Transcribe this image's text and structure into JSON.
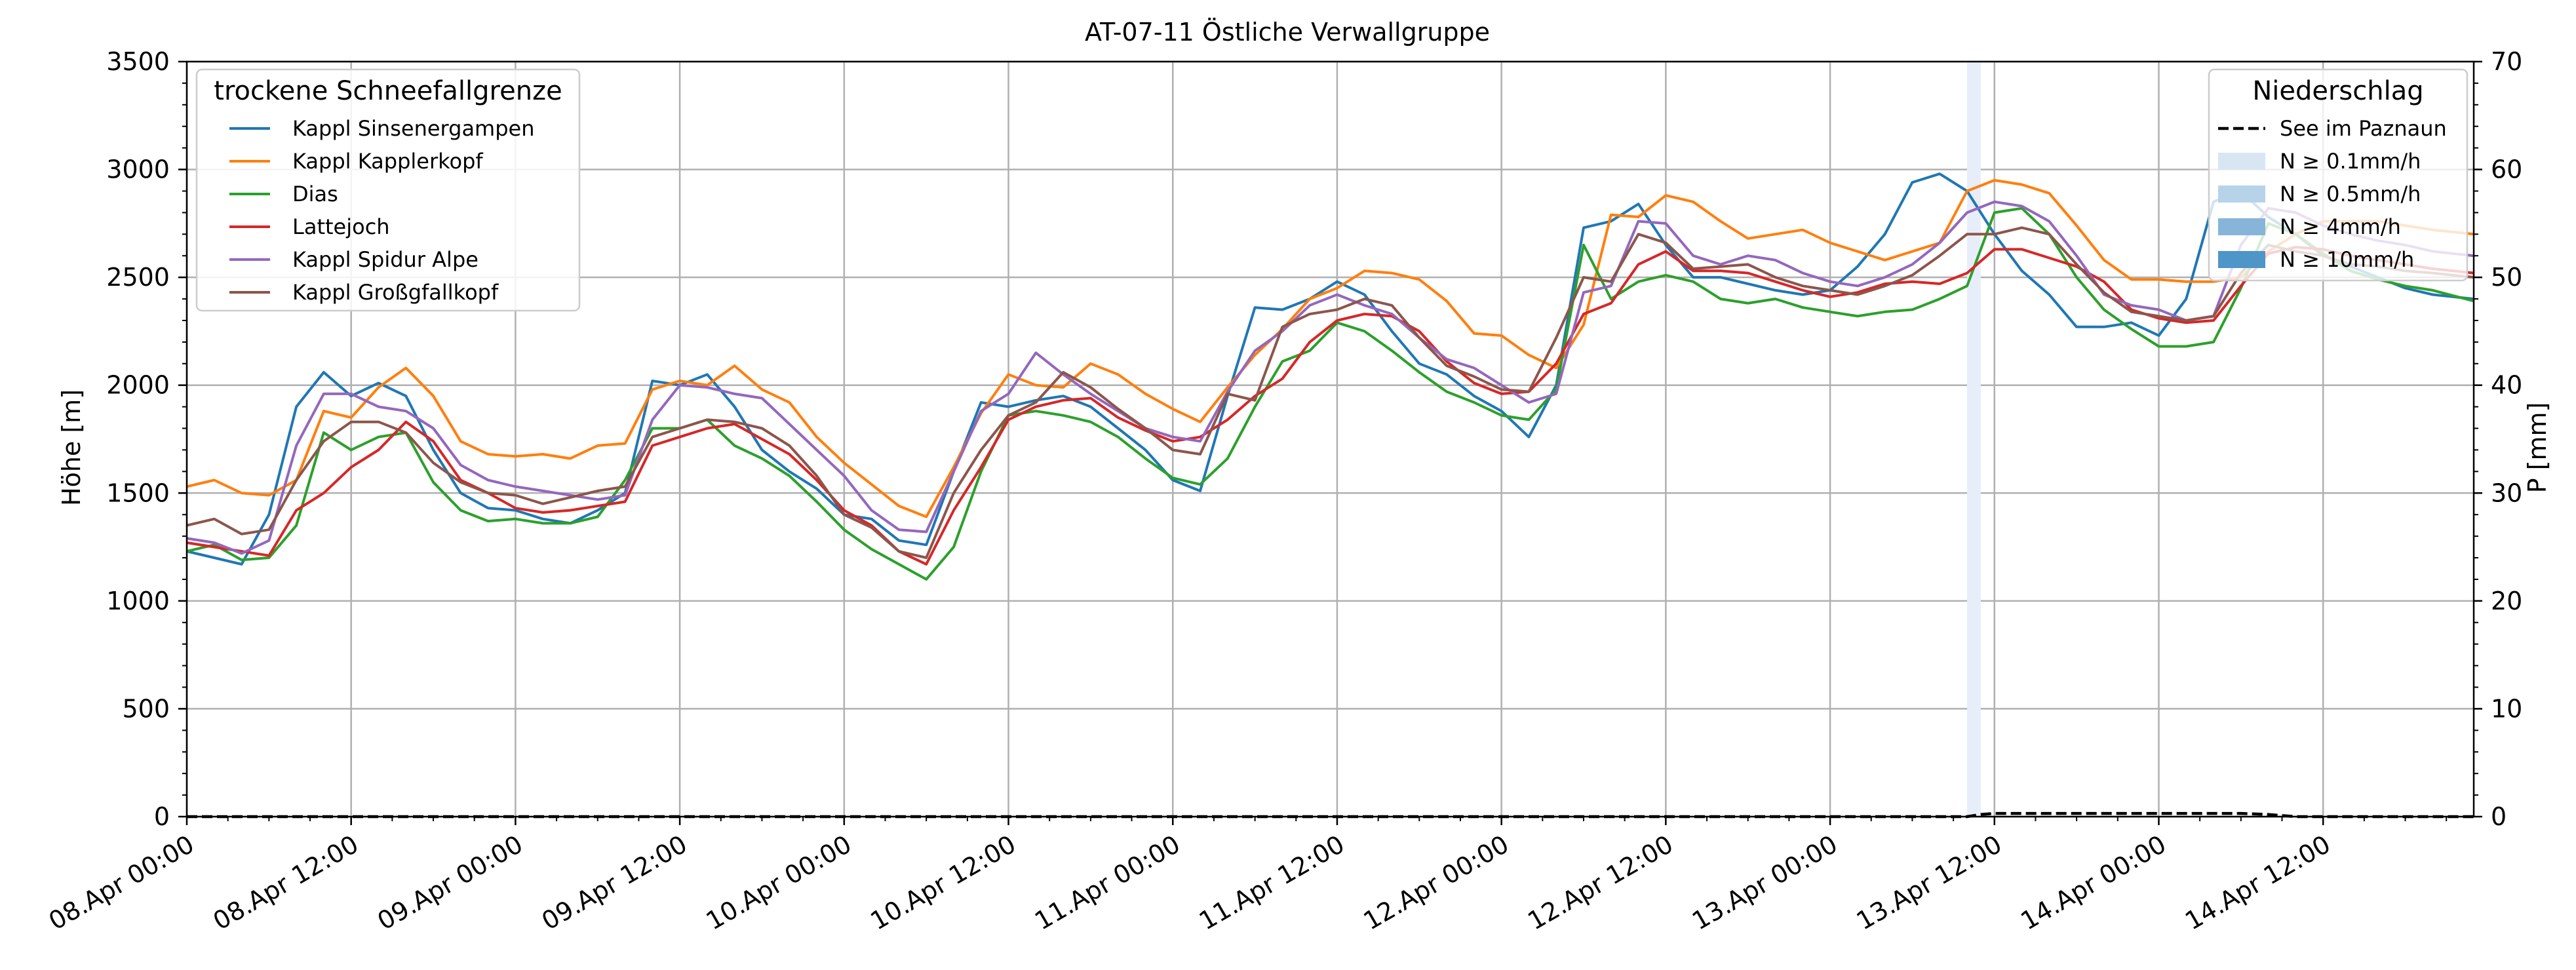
{
  "chart_data": {
    "type": "line",
    "title": "AT-07-11 Östliche Verwallgruppe",
    "xlabel": "",
    "ylabel": "Höhe [m]",
    "y2label": "P [mm]",
    "x_unit": "hours since 08.Apr 00:00",
    "xlim": [
      0,
      167
    ],
    "ylim": [
      0,
      3500
    ],
    "y2lim": [
      0,
      70
    ],
    "grid": true,
    "x_ticks": [
      {
        "x": 0,
        "label": "08.Apr 00:00"
      },
      {
        "x": 12,
        "label": "08.Apr 12:00"
      },
      {
        "x": 24,
        "label": "09.Apr 00:00"
      },
      {
        "x": 36,
        "label": "09.Apr 12:00"
      },
      {
        "x": 48,
        "label": "10.Apr 00:00"
      },
      {
        "x": 60,
        "label": "10.Apr 12:00"
      },
      {
        "x": 72,
        "label": "11.Apr 00:00"
      },
      {
        "x": 84,
        "label": "11.Apr 12:00"
      },
      {
        "x": 96,
        "label": "12.Apr 00:00"
      },
      {
        "x": 108,
        "label": "12.Apr 12:00"
      },
      {
        "x": 120,
        "label": "13.Apr 00:00"
      },
      {
        "x": 132,
        "label": "13.Apr 12:00"
      },
      {
        "x": 144,
        "label": "14.Apr 00:00"
      },
      {
        "x": 156,
        "label": "14.Apr 12:00"
      }
    ],
    "y_ticks": [
      0,
      500,
      1000,
      1500,
      2000,
      2500,
      3000,
      3500
    ],
    "y2_ticks": [
      0,
      10,
      20,
      30,
      40,
      50,
      60,
      70
    ],
    "legend_snow": {
      "title": "trockene Schneefallgrenze",
      "placement": "top-left"
    },
    "legend_precip": {
      "title": "Niederschlag",
      "placement": "top-right",
      "entries": [
        {
          "label": "See im Paznaun",
          "color": "#000000",
          "style": "dashed"
        },
        {
          "label": "N ≥ 0.1mm/h",
          "color": "#d8e6f3"
        },
        {
          "label": "N ≥ 0.5mm/h",
          "color": "#b7d3ea"
        },
        {
          "label": "N ≥ 4mm/h",
          "color": "#86b5d9"
        },
        {
          "label": "N ≥ 10mm/h",
          "color": "#4e95c8"
        }
      ]
    },
    "precip_band": {
      "x0": 130,
      "x1": 131,
      "color": "#e7eef9"
    },
    "precip_series": {
      "name": "See im Paznaun",
      "x": [
        0,
        130,
        131,
        132,
        134,
        140,
        144,
        150,
        152,
        153,
        154,
        167
      ],
      "y": [
        0,
        0,
        0.2,
        0.3,
        0.3,
        0.3,
        0.3,
        0.3,
        0.2,
        0.1,
        0,
        0
      ]
    },
    "series": [
      {
        "name": "Kappl Sinsenergampen",
        "color": "#1f77b4",
        "x": [
          0,
          2,
          4,
          6,
          8,
          10,
          12,
          14,
          16,
          18,
          20,
          22,
          24,
          26,
          28,
          30,
          32,
          34,
          36,
          38,
          40,
          42,
          44,
          46,
          48,
          50,
          52,
          54,
          56,
          58,
          60,
          62,
          64,
          66,
          68,
          70,
          72,
          74,
          76,
          78,
          80,
          82,
          84,
          86,
          88,
          90,
          92,
          94,
          96,
          98,
          100,
          102,
          104,
          106,
          108,
          110,
          112,
          114,
          116,
          118,
          120,
          122,
          124,
          126,
          128,
          130,
          132,
          134,
          136,
          138,
          140,
          142,
          144,
          146,
          148,
          150,
          152,
          154,
          156,
          158,
          160,
          162,
          164,
          167
        ],
        "y": [
          1230,
          1200,
          1170,
          1400,
          1900,
          2060,
          1950,
          2010,
          1950,
          1700,
          1500,
          1430,
          1420,
          1380,
          1360,
          1420,
          1500,
          2020,
          2000,
          2050,
          1900,
          1700,
          1600,
          1520,
          1400,
          1380,
          1280,
          1260,
          1600,
          1920,
          1900,
          1930,
          1950,
          1900,
          1800,
          1700,
          1560,
          1510,
          1950,
          2360,
          2350,
          2400,
          2480,
          2420,
          2250,
          2100,
          2050,
          1950,
          1880,
          1760,
          2000,
          2730,
          2760,
          2840,
          2650,
          2500,
          2500,
          2470,
          2440,
          2420,
          2440,
          2550,
          2700,
          2940,
          2980,
          2900,
          2700,
          2530,
          2420,
          2270,
          2270,
          2290,
          2230,
          2400,
          2850,
          2900,
          2780,
          2700,
          2600,
          2550,
          2500,
          2450,
          2420,
          2400
        ]
      },
      {
        "name": "Kappl Kapplerkopf",
        "color": "#ff7f0e",
        "x": [
          0,
          2,
          4,
          6,
          8,
          10,
          12,
          14,
          16,
          18,
          20,
          22,
          24,
          26,
          28,
          30,
          32,
          34,
          36,
          38,
          40,
          42,
          44,
          46,
          48,
          50,
          52,
          54,
          56,
          58,
          60,
          62,
          64,
          66,
          68,
          70,
          72,
          74,
          76,
          78,
          80,
          82,
          84,
          86,
          88,
          90,
          92,
          94,
          96,
          98,
          100,
          102,
          104,
          106,
          108,
          110,
          112,
          114,
          116,
          118,
          120,
          122,
          124,
          126,
          128,
          130,
          132,
          134,
          136,
          138,
          140,
          142,
          144,
          146,
          148,
          150,
          152,
          154,
          156,
          158,
          160,
          162,
          164,
          167
        ],
        "y": [
          1530,
          1560,
          1500,
          1490,
          1560,
          1880,
          1850,
          1990,
          2080,
          1950,
          1740,
          1680,
          1670,
          1680,
          1660,
          1720,
          1730,
          1980,
          2020,
          2000,
          2090,
          1980,
          1920,
          1760,
          1640,
          1540,
          1440,
          1390,
          1620,
          1870,
          2050,
          2000,
          1990,
          2100,
          2050,
          1960,
          1890,
          1830,
          1990,
          2140,
          2260,
          2400,
          2450,
          2530,
          2520,
          2490,
          2390,
          2240,
          2230,
          2140,
          2080,
          2280,
          2790,
          2780,
          2880,
          2850,
          2760,
          2680,
          2700,
          2720,
          2660,
          2620,
          2580,
          2620,
          2660,
          2900,
          2950,
          2930,
          2890,
          2740,
          2580,
          2490,
          2490,
          2480,
          2480,
          2500,
          2620,
          2700,
          2760,
          2760,
          2760,
          2740,
          2720,
          2700
        ]
      },
      {
        "name": "Dias",
        "color": "#2ca02c",
        "x": [
          0,
          2,
          4,
          6,
          8,
          10,
          12,
          14,
          16,
          18,
          20,
          22,
          24,
          26,
          28,
          30,
          32,
          34,
          36,
          38,
          40,
          42,
          44,
          46,
          48,
          50,
          52,
          54,
          56,
          58,
          60,
          62,
          64,
          66,
          68,
          70,
          72,
          74,
          76,
          78,
          80,
          82,
          84,
          86,
          88,
          90,
          92,
          94,
          96,
          98,
          100,
          102,
          104,
          106,
          108,
          110,
          112,
          114,
          116,
          118,
          120,
          122,
          124,
          126,
          128,
          130,
          132,
          134,
          136,
          138,
          140,
          142,
          144,
          146,
          148,
          150,
          152,
          154,
          156,
          158,
          160,
          162,
          164,
          167
        ],
        "y": [
          1230,
          1260,
          1190,
          1200,
          1350,
          1780,
          1700,
          1760,
          1780,
          1550,
          1420,
          1370,
          1380,
          1360,
          1360,
          1390,
          1560,
          1800,
          1800,
          1840,
          1720,
          1660,
          1580,
          1460,
          1330,
          1240,
          1170,
          1100,
          1250,
          1600,
          1860,
          1880,
          1860,
          1830,
          1760,
          1660,
          1570,
          1540,
          1660,
          1900,
          2110,
          2160,
          2290,
          2250,
          2160,
          2060,
          1970,
          1920,
          1860,
          1840,
          1980,
          2650,
          2400,
          2480,
          2510,
          2480,
          2400,
          2380,
          2400,
          2360,
          2340,
          2320,
          2340,
          2350,
          2400,
          2460,
          2800,
          2820,
          2700,
          2500,
          2350,
          2260,
          2180,
          2180,
          2200,
          2450,
          2750,
          2700,
          2610,
          2530,
          2490,
          2460,
          2440,
          2390
        ]
      },
      {
        "name": "Lattejoch",
        "color": "#d62728",
        "x": [
          0,
          2,
          4,
          6,
          8,
          10,
          12,
          14,
          16,
          18,
          20,
          22,
          24,
          26,
          28,
          30,
          32,
          34,
          36,
          38,
          40,
          42,
          44,
          46,
          48,
          50,
          52,
          54,
          56,
          58,
          60,
          62,
          64,
          66,
          68,
          70,
          72,
          74,
          76,
          78,
          80,
          82,
          84,
          86,
          88,
          90,
          92,
          94,
          96,
          98,
          100,
          102,
          104,
          106,
          108,
          110,
          112,
          114,
          116,
          118,
          120,
          122,
          124,
          126,
          128,
          130,
          132,
          134,
          136,
          138,
          140,
          142,
          144,
          146,
          148,
          150,
          152,
          154,
          156,
          158,
          160,
          162,
          164,
          167
        ],
        "y": [
          1270,
          1250,
          1230,
          1210,
          1420,
          1500,
          1620,
          1700,
          1830,
          1740,
          1560,
          1500,
          1430,
          1410,
          1420,
          1440,
          1460,
          1720,
          1760,
          1800,
          1820,
          1750,
          1680,
          1560,
          1420,
          1350,
          1230,
          1170,
          1420,
          1620,
          1840,
          1900,
          1930,
          1940,
          1850,
          1790,
          1740,
          1760,
          1840,
          1950,
          2030,
          2200,
          2300,
          2330,
          2320,
          2250,
          2110,
          2010,
          1960,
          1970,
          2100,
          2330,
          2380,
          2560,
          2620,
          2530,
          2530,
          2520,
          2480,
          2440,
          2410,
          2430,
          2470,
          2480,
          2470,
          2520,
          2630,
          2630,
          2590,
          2550,
          2480,
          2350,
          2310,
          2290,
          2300,
          2460,
          2610,
          2640,
          2630,
          2600,
          2580,
          2560,
          2540,
          2520
        ]
      },
      {
        "name": "Kappl Spidur Alpe",
        "color": "#9467bd",
        "x": [
          0,
          2,
          4,
          6,
          8,
          10,
          12,
          14,
          16,
          18,
          20,
          22,
          24,
          26,
          28,
          30,
          32,
          34,
          36,
          38,
          40,
          42,
          44,
          46,
          48,
          50,
          52,
          54,
          56,
          58,
          60,
          62,
          64,
          66,
          68,
          70,
          72,
          74,
          76,
          78,
          80,
          82,
          84,
          86,
          88,
          90,
          92,
          94,
          96,
          98,
          100,
          102,
          104,
          106,
          108,
          110,
          112,
          114,
          116,
          118,
          120,
          122,
          124,
          126,
          128,
          130,
          132,
          134,
          136,
          138,
          140,
          142,
          144,
          146,
          148,
          150,
          152,
          154,
          156,
          158,
          160,
          162,
          164,
          167
        ],
        "y": [
          1290,
          1270,
          1220,
          1280,
          1720,
          1960,
          1960,
          1900,
          1880,
          1800,
          1630,
          1560,
          1530,
          1510,
          1490,
          1470,
          1490,
          1840,
          2000,
          1990,
          1960,
          1940,
          1820,
          1700,
          1580,
          1420,
          1330,
          1320,
          1600,
          1880,
          1960,
          2150,
          2050,
          1960,
          1880,
          1800,
          1760,
          1740,
          1970,
          2160,
          2250,
          2370,
          2420,
          2370,
          2330,
          2220,
          2120,
          2080,
          2000,
          1920,
          1960,
          2430,
          2460,
          2760,
          2750,
          2600,
          2560,
          2600,
          2580,
          2520,
          2480,
          2460,
          2500,
          2560,
          2660,
          2800,
          2850,
          2830,
          2760,
          2600,
          2420,
          2370,
          2350,
          2300,
          2320,
          2650,
          2820,
          2800,
          2740,
          2700,
          2670,
          2650,
          2620,
          2600
        ]
      },
      {
        "name": "Kappl Großgfallkopf",
        "color": "#8c564b",
        "x": [
          0,
          2,
          4,
          6,
          8,
          10,
          12,
          14,
          16,
          18,
          20,
          22,
          24,
          26,
          28,
          30,
          32,
          34,
          36,
          38,
          40,
          42,
          44,
          46,
          48,
          50,
          52,
          54,
          56,
          58,
          60,
          62,
          64,
          66,
          68,
          70,
          72,
          74,
          76,
          78,
          80,
          82,
          84,
          86,
          88,
          90,
          92,
          94,
          96,
          98,
          100,
          102,
          104,
          106,
          108,
          110,
          112,
          114,
          116,
          118,
          120,
          122,
          124,
          126,
          128,
          130,
          132,
          134,
          136,
          138,
          140,
          142,
          144,
          146,
          148,
          150,
          152,
          154,
          156,
          158,
          160,
          162,
          164,
          167
        ],
        "y": [
          1350,
          1380,
          1310,
          1330,
          1560,
          1740,
          1830,
          1830,
          1780,
          1640,
          1550,
          1500,
          1490,
          1450,
          1480,
          1510,
          1530,
          1760,
          1800,
          1840,
          1830,
          1800,
          1720,
          1580,
          1400,
          1340,
          1230,
          1200,
          1500,
          1700,
          1860,
          1920,
          2060,
          1990,
          1890,
          1800,
          1700,
          1680,
          1960,
          1930,
          2270,
          2330,
          2350,
          2400,
          2370,
          2220,
          2090,
          2040,
          1980,
          1970,
          2220,
          2500,
          2480,
          2700,
          2660,
          2540,
          2550,
          2560,
          2500,
          2460,
          2440,
          2420,
          2460,
          2510,
          2600,
          2700,
          2700,
          2730,
          2700,
          2560,
          2430,
          2340,
          2320,
          2300,
          2320,
          2520,
          2650,
          2620,
          2600,
          2560,
          2550,
          2530,
          2520,
          2500
        ]
      }
    ]
  }
}
